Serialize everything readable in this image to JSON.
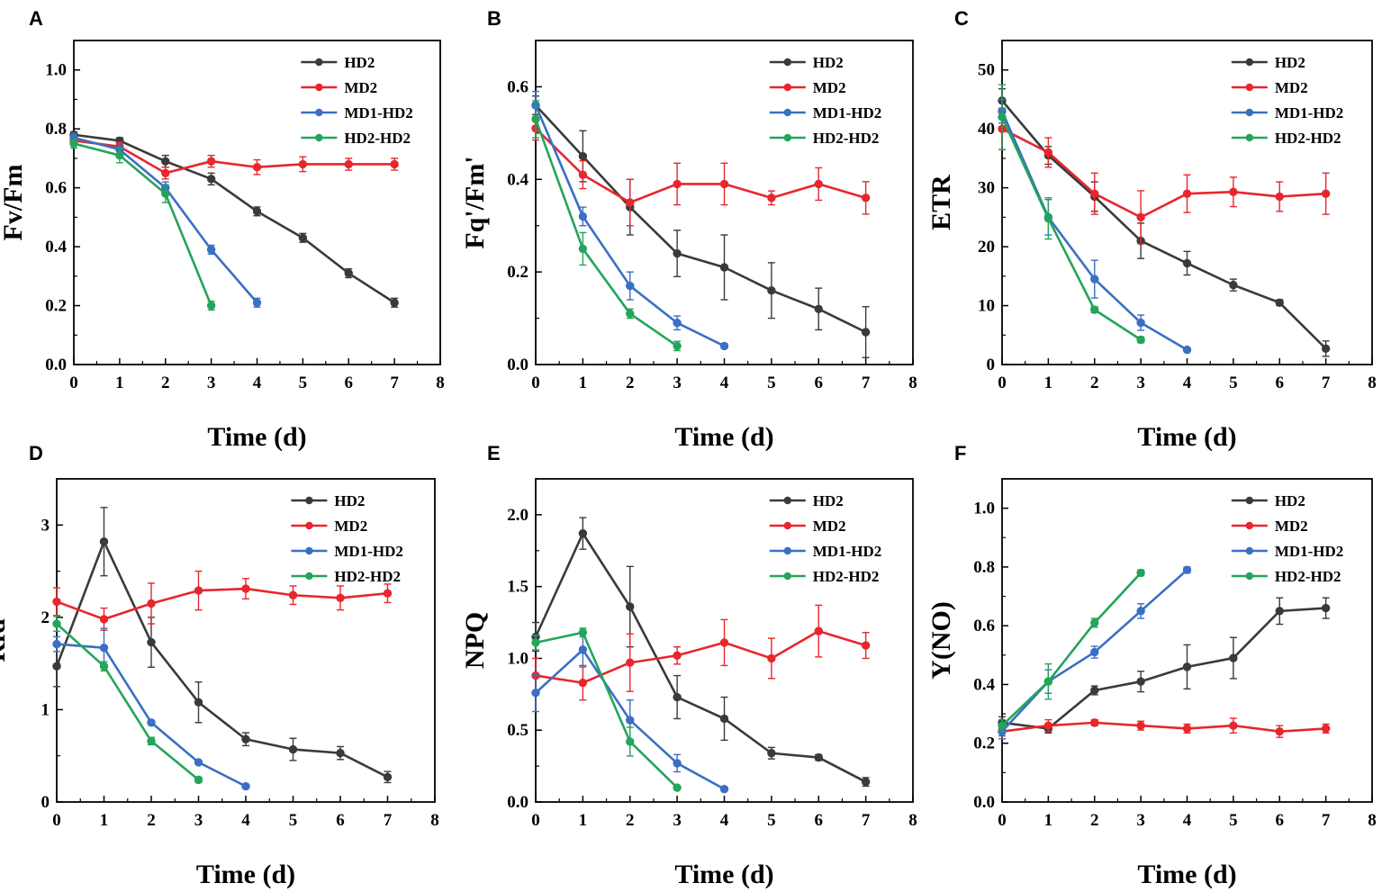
{
  "colors": {
    "HD2": "#3a3a3a",
    "MD2": "#e8262d",
    "MD1-HD2": "#3a6fc4",
    "HD2-HD2": "#24a55a",
    "axis": "#000000"
  },
  "chart_data": [
    {
      "panel": "A",
      "type": "line",
      "xlabel": "Time (d)",
      "ylabel": "Fv/Fm",
      "xlim": [
        0,
        8
      ],
      "ylim": [
        0,
        1.1
      ],
      "xticks": [
        0,
        1,
        2,
        3,
        4,
        5,
        6,
        7,
        8
      ],
      "yticks": [
        0.0,
        0.2,
        0.4,
        0.6,
        0.8,
        1.0
      ],
      "ytick_labels": [
        "0.0",
        "0.2",
        "0.4",
        "0.6",
        "0.8",
        "1.0"
      ],
      "legend_position": "top-right",
      "series": [
        {
          "name": "HD2",
          "x": [
            0,
            1,
            2,
            3,
            4,
            5,
            6,
            7
          ],
          "values": [
            0.78,
            0.76,
            0.69,
            0.63,
            0.52,
            0.43,
            0.31,
            0.21
          ],
          "errors": [
            0.01,
            0.01,
            0.02,
            0.02,
            0.015,
            0.015,
            0.015,
            0.015
          ]
        },
        {
          "name": "MD2",
          "x": [
            0,
            1,
            2,
            3,
            4,
            5,
            6,
            7
          ],
          "values": [
            0.76,
            0.74,
            0.65,
            0.69,
            0.67,
            0.68,
            0.68,
            0.68
          ],
          "errors": [
            0.015,
            0.015,
            0.02,
            0.02,
            0.025,
            0.025,
            0.02,
            0.02
          ]
        },
        {
          "name": "MD1-HD2",
          "x": [
            0,
            1,
            2,
            3,
            4
          ],
          "values": [
            0.77,
            0.73,
            0.6,
            0.39,
            0.21
          ],
          "errors": [
            0.015,
            0.02,
            0.02,
            0.015,
            0.015
          ]
        },
        {
          "name": "HD2-HD2",
          "x": [
            0,
            1,
            2,
            3
          ],
          "values": [
            0.75,
            0.71,
            0.58,
            0.2
          ],
          "errors": [
            0.015,
            0.025,
            0.03,
            0.015
          ]
        }
      ]
    },
    {
      "panel": "B",
      "type": "line",
      "xlabel": "Time (d)",
      "ylabel": "Fq'/Fm'",
      "xlim": [
        0,
        8
      ],
      "ylim": [
        0,
        0.7
      ],
      "xticks": [
        0,
        1,
        2,
        3,
        4,
        5,
        6,
        7,
        8
      ],
      "yticks": [
        0.0,
        0.2,
        0.4,
        0.6
      ],
      "ytick_labels": [
        "0.0",
        "0.2",
        "0.4",
        "0.6"
      ],
      "legend_position": "top-right",
      "series": [
        {
          "name": "HD2",
          "x": [
            0,
            1,
            2,
            3,
            4,
            5,
            6,
            7
          ],
          "values": [
            0.56,
            0.45,
            0.34,
            0.24,
            0.21,
            0.16,
            0.12,
            0.07
          ],
          "errors": [
            0.02,
            0.055,
            0.06,
            0.05,
            0.07,
            0.06,
            0.045,
            0.055
          ]
        },
        {
          "name": "MD2",
          "x": [
            0,
            1,
            2,
            3,
            4,
            5,
            6,
            7
          ],
          "values": [
            0.51,
            0.41,
            0.35,
            0.39,
            0.39,
            0.36,
            0.39,
            0.36
          ],
          "errors": [
            0.025,
            0.03,
            0.05,
            0.045,
            0.045,
            0.015,
            0.035,
            0.035
          ]
        },
        {
          "name": "MD1-HD2",
          "x": [
            0,
            1,
            2,
            3,
            4
          ],
          "values": [
            0.56,
            0.32,
            0.17,
            0.09,
            0.04
          ],
          "errors": [
            0.03,
            0.02,
            0.03,
            0.015,
            0.005
          ]
        },
        {
          "name": "HD2-HD2",
          "x": [
            0,
            1,
            2,
            3
          ],
          "values": [
            0.53,
            0.25,
            0.11,
            0.04
          ],
          "errors": [
            0.04,
            0.035,
            0.01,
            0.01
          ]
        }
      ]
    },
    {
      "panel": "C",
      "type": "line",
      "xlabel": "Time (d)",
      "ylabel": "ETR",
      "xlim": [
        0,
        8
      ],
      "ylim": [
        0,
        55
      ],
      "xticks": [
        0,
        1,
        2,
        3,
        4,
        5,
        6,
        7,
        8
      ],
      "yticks": [
        0,
        10,
        20,
        30,
        40,
        50
      ],
      "ytick_labels": [
        "0",
        "10",
        "20",
        "30",
        "40",
        "50"
      ],
      "legend_position": "top-right",
      "series": [
        {
          "name": "HD2",
          "x": [
            0,
            1,
            2,
            3,
            4,
            5,
            6,
            7
          ],
          "values": [
            44.8,
            35.5,
            28.5,
            21,
            17.2,
            13.5,
            10.5,
            2.7
          ],
          "errors": [
            2,
            1.5,
            2.5,
            3,
            2,
            1,
            0.5,
            1.3
          ]
        },
        {
          "name": "MD2",
          "x": [
            0,
            1,
            2,
            3,
            4,
            5,
            6,
            7
          ],
          "values": [
            40,
            36,
            29,
            25,
            29,
            29.3,
            28.5,
            29
          ],
          "errors": [
            3.5,
            2.5,
            3.5,
            4.5,
            3.2,
            2.5,
            2.5,
            3.5
          ]
        },
        {
          "name": "MD1-HD2",
          "x": [
            0,
            1,
            2,
            3,
            4
          ],
          "values": [
            43,
            25,
            14.5,
            7.1,
            2.5
          ],
          "errors": [
            2,
            3,
            3.2,
            1.3,
            0.3
          ]
        },
        {
          "name": "HD2-HD2",
          "x": [
            0,
            1,
            2,
            3
          ],
          "values": [
            42,
            24.8,
            9.3,
            4.2
          ],
          "errors": [
            5.5,
            3.5,
            0.5,
            0.5
          ]
        }
      ]
    },
    {
      "panel": "D",
      "type": "line",
      "xlabel": "Time (d)",
      "ylabel": "Rfd",
      "xlim": [
        0,
        8
      ],
      "ylim": [
        0,
        3.5
      ],
      "xticks": [
        0,
        1,
        2,
        3,
        4,
        5,
        6,
        7,
        8
      ],
      "yticks": [
        0,
        1,
        2,
        3
      ],
      "ytick_labels": [
        "0",
        "1",
        "2",
        "3"
      ],
      "legend_position": "top-right",
      "series": [
        {
          "name": "HD2",
          "x": [
            0,
            1,
            2,
            3,
            4,
            5,
            6,
            7
          ],
          "values": [
            1.47,
            2.82,
            1.73,
            1.08,
            0.68,
            0.57,
            0.53,
            0.27
          ],
          "errors": [
            0.22,
            0.37,
            0.27,
            0.22,
            0.07,
            0.12,
            0.07,
            0.06
          ]
        },
        {
          "name": "MD2",
          "x": [
            0,
            1,
            2,
            3,
            4,
            5,
            6,
            7
          ],
          "values": [
            2.17,
            1.98,
            2.15,
            2.29,
            2.31,
            2.24,
            2.21,
            2.26
          ],
          "errors": [
            0.15,
            0.12,
            0.22,
            0.21,
            0.11,
            0.1,
            0.13,
            0.1
          ]
        },
        {
          "name": "MD1-HD2",
          "x": [
            0,
            1,
            2,
            3,
            4
          ],
          "values": [
            1.71,
            1.67,
            0.86,
            0.43,
            0.17
          ],
          "errors": [
            0.08,
            0.21,
            0.02,
            0.02,
            0.02
          ]
        },
        {
          "name": "HD2-HD2",
          "x": [
            0,
            1,
            2,
            3
          ],
          "values": [
            1.93,
            1.47,
            0.66,
            0.24
          ],
          "errors": [
            0.08,
            0.05,
            0.04,
            0.03
          ]
        }
      ]
    },
    {
      "panel": "E",
      "type": "line",
      "xlabel": "Time (d)",
      "ylabel": "NPQ",
      "xlim": [
        0,
        8
      ],
      "ylim": [
        0,
        2.25
      ],
      "xticks": [
        0,
        1,
        2,
        3,
        4,
        5,
        6,
        7,
        8
      ],
      "yticks": [
        0.0,
        0.5,
        1.0,
        1.5,
        2.0
      ],
      "ytick_labels": [
        "0.0",
        "0.5",
        "1.0",
        "1.5",
        "2.0"
      ],
      "legend_position": "top-right",
      "series": [
        {
          "name": "HD2",
          "x": [
            0,
            1,
            2,
            3,
            4,
            5,
            6,
            7
          ],
          "values": [
            1.15,
            1.87,
            1.36,
            0.73,
            0.58,
            0.34,
            0.31,
            0.14
          ],
          "errors": [
            0.1,
            0.11,
            0.28,
            0.15,
            0.15,
            0.04,
            0.02,
            0.03
          ]
        },
        {
          "name": "MD2",
          "x": [
            0,
            1,
            2,
            3,
            4,
            5,
            6,
            7
          ],
          "values": [
            0.88,
            0.83,
            0.97,
            1.02,
            1.11,
            1.0,
            1.19,
            1.09
          ],
          "errors": [
            0.12,
            0.12,
            0.2,
            0.06,
            0.16,
            0.14,
            0.18,
            0.09
          ]
        },
        {
          "name": "MD1-HD2",
          "x": [
            0,
            1,
            2,
            3,
            4
          ],
          "values": [
            0.76,
            1.06,
            0.57,
            0.27,
            0.09
          ],
          "errors": [
            0.13,
            0.12,
            0.14,
            0.06,
            0.01
          ]
        },
        {
          "name": "HD2-HD2",
          "x": [
            0,
            1,
            2,
            3
          ],
          "values": [
            1.11,
            1.18,
            0.42,
            0.1
          ],
          "errors": [
            0.05,
            0.03,
            0.1,
            0.01
          ]
        }
      ]
    },
    {
      "panel": "F",
      "type": "line",
      "xlabel": "Time (d)",
      "ylabel": "Y(NO)",
      "xlim": [
        0,
        8
      ],
      "ylim": [
        0,
        1.1
      ],
      "xticks": [
        0,
        1,
        2,
        3,
        4,
        5,
        6,
        7,
        8
      ],
      "yticks": [
        0.0,
        0.2,
        0.4,
        0.6,
        0.8,
        1.0
      ],
      "ytick_labels": [
        "0.0",
        "0.2",
        "0.4",
        "0.6",
        "0.8",
        "1.0"
      ],
      "legend_position": "top-right",
      "series": [
        {
          "name": "HD2",
          "x": [
            0,
            1,
            2,
            3,
            4,
            5,
            6,
            7
          ],
          "values": [
            0.27,
            0.25,
            0.38,
            0.41,
            0.46,
            0.49,
            0.65,
            0.66
          ],
          "errors": [
            0.02,
            0.015,
            0.015,
            0.035,
            0.075,
            0.07,
            0.045,
            0.035
          ]
        },
        {
          "name": "MD2",
          "x": [
            0,
            1,
            2,
            3,
            4,
            5,
            6,
            7
          ],
          "values": [
            0.24,
            0.26,
            0.27,
            0.26,
            0.25,
            0.26,
            0.24,
            0.25
          ],
          "errors": [
            0.015,
            0.02,
            0.01,
            0.015,
            0.015,
            0.025,
            0.02,
            0.015
          ]
        },
        {
          "name": "MD1-HD2",
          "x": [
            0,
            1,
            2,
            3,
            4
          ],
          "values": [
            0.24,
            0.41,
            0.51,
            0.65,
            0.79
          ],
          "errors": [
            0.025,
            0.04,
            0.02,
            0.025,
            0.01
          ]
        },
        {
          "name": "HD2-HD2",
          "x": [
            0,
            1,
            2,
            3
          ],
          "values": [
            0.26,
            0.41,
            0.61,
            0.78
          ],
          "errors": [
            0.02,
            0.06,
            0.015,
            0.01
          ]
        }
      ]
    }
  ]
}
